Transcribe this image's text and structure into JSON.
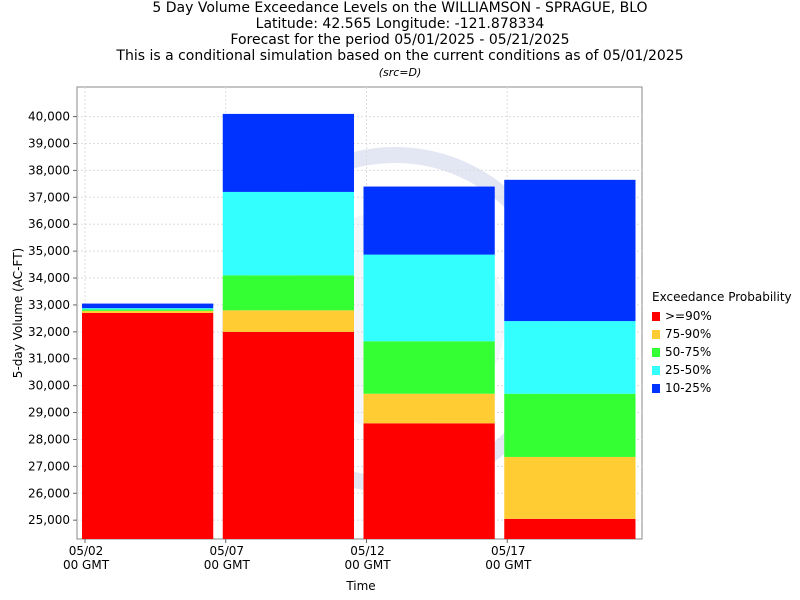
{
  "titles": {
    "line1": "5 Day Volume Exceedance Levels on the WILLIAMSON - SPRAGUE, BLO",
    "line2": "Latitude: 42.565 Longitude: -121.878334",
    "line3": "Forecast for the period 05/01/2025 - 05/21/2025",
    "line4": "This is a conditional simulation based on the current conditions as of 05/01/2025",
    "src": "(src=D)"
  },
  "chart_data": {
    "type": "bar",
    "stacked": true,
    "xlabel": "Time",
    "ylabel": "5-day Volume (AC-FT)",
    "ylim": [
      24300,
      41100
    ],
    "yticks": [
      25000,
      26000,
      27000,
      28000,
      29000,
      30000,
      31000,
      32000,
      33000,
      34000,
      35000,
      36000,
      37000,
      38000,
      39000,
      40000
    ],
    "ytick_labels": [
      "25,000",
      "26,000",
      "27,000",
      "28,000",
      "29,000",
      "30,000",
      "31,000",
      "32,000",
      "33,000",
      "34,000",
      "35,000",
      "36,000",
      "37,000",
      "38,000",
      "39,000",
      "40,000"
    ],
    "xticks": [
      {
        "line1": "05/02",
        "line2": "00 GMT"
      },
      {
        "line1": "05/07",
        "line2": "00 GMT"
      },
      {
        "line1": "05/12",
        "line2": "00 GMT"
      },
      {
        "line1": "05/17",
        "line2": "00 GMT"
      }
    ],
    "grid": true,
    "legend": {
      "title": "Exceedance Probability",
      "placement": "right",
      "entries": [
        {
          "label": ">=90%",
          "color": "#ff0000"
        },
        {
          "label": "75-90%",
          "color": "#ffcc33"
        },
        {
          "label": "50-75%",
          "color": "#33ff33"
        },
        {
          "label": "25-50%",
          "color": "#33ffff"
        },
        {
          "label": "10-25%",
          "color": "#0033ff"
        }
      ]
    },
    "bars": [
      {
        "period_start": "05/02",
        "levels": [
          32700,
          32780,
          32830,
          32880,
          33050
        ]
      },
      {
        "period_start": "05/07",
        "levels": [
          32000,
          32800,
          34100,
          37200,
          40100
        ]
      },
      {
        "period_start": "05/12",
        "levels": [
          28600,
          29700,
          31650,
          34870,
          37400
        ]
      },
      {
        "period_start": "05/17",
        "levels": [
          25050,
          27350,
          29700,
          32400,
          37650
        ]
      }
    ]
  }
}
